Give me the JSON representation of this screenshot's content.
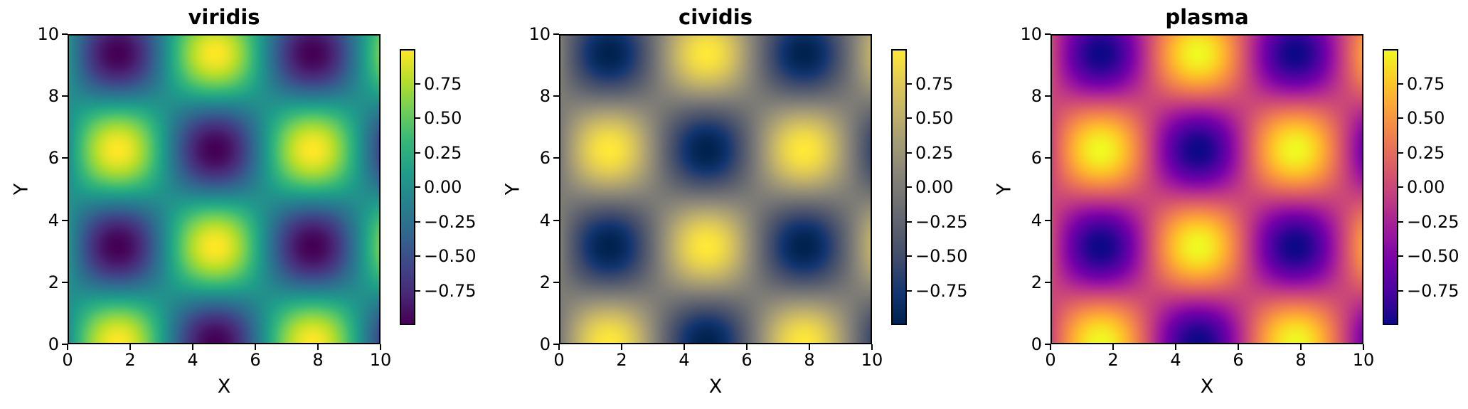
{
  "figure": {
    "background": "#ffffff",
    "n_subplots": 3,
    "text_color": "#000000"
  },
  "chart_data": [
    {
      "type": "heatmap",
      "title": "viridis",
      "xlabel": "X",
      "ylabel": "Y",
      "x_range": [
        0,
        10
      ],
      "y_range": [
        0,
        10
      ],
      "x_ticks": [
        0,
        2,
        4,
        6,
        8,
        10
      ],
      "y_ticks": [
        0,
        2,
        4,
        6,
        8,
        10
      ],
      "z_function": "z = sin(x) * cos(y)",
      "z_range": [
        -1,
        1
      ],
      "grid": false,
      "colorbar": {
        "position": "right",
        "vmin": -1,
        "vmax": 1,
        "ticks": [
          0.75,
          0.5,
          0.25,
          0.0,
          -0.25,
          -0.5,
          -0.75
        ],
        "tick_labels": [
          "0.75",
          "0.50",
          "0.25",
          "0.00",
          "−0.25",
          "−0.50",
          "−0.75"
        ]
      },
      "colormap": {
        "name": "viridis",
        "stops": [
          "#440154",
          "#482878",
          "#3e4989",
          "#31688e",
          "#26828e",
          "#1f9e89",
          "#35b779",
          "#6ece58",
          "#b5de2b",
          "#fde725"
        ]
      }
    },
    {
      "type": "heatmap",
      "title": "cividis",
      "xlabel": "X",
      "ylabel": "Y",
      "x_range": [
        0,
        10
      ],
      "y_range": [
        0,
        10
      ],
      "x_ticks": [
        0,
        2,
        4,
        6,
        8,
        10
      ],
      "y_ticks": [
        0,
        2,
        4,
        6,
        8,
        10
      ],
      "z_function": "z = sin(x) * cos(y)",
      "z_range": [
        -1,
        1
      ],
      "grid": false,
      "colorbar": {
        "position": "right",
        "vmin": -1,
        "vmax": 1,
        "ticks": [
          0.75,
          0.5,
          0.25,
          0.0,
          -0.25,
          -0.5,
          -0.75
        ],
        "tick_labels": [
          "0.75",
          "0.50",
          "0.25",
          "0.00",
          "−0.25",
          "−0.50",
          "−0.75"
        ]
      },
      "colormap": {
        "name": "cividis",
        "stops": [
          "#00224e",
          "#123570",
          "#3b496c",
          "#575d6d",
          "#707173",
          "#8a8678",
          "#a59c74",
          "#c3b369",
          "#e1cc55",
          "#fee838"
        ]
      }
    },
    {
      "type": "heatmap",
      "title": "plasma",
      "xlabel": "X",
      "ylabel": "Y",
      "x_range": [
        0,
        10
      ],
      "y_range": [
        0,
        10
      ],
      "x_ticks": [
        0,
        2,
        4,
        6,
        8,
        10
      ],
      "y_ticks": [
        0,
        2,
        4,
        6,
        8,
        10
      ],
      "z_function": "z = sin(x) * cos(y)",
      "z_range": [
        -1,
        1
      ],
      "grid": false,
      "colorbar": {
        "position": "right",
        "vmin": -1,
        "vmax": 1,
        "ticks": [
          0.75,
          0.5,
          0.25,
          0.0,
          -0.25,
          -0.5,
          -0.75
        ],
        "tick_labels": [
          "0.75",
          "0.50",
          "0.25",
          "0.00",
          "−0.25",
          "−0.50",
          "−0.75"
        ]
      },
      "colormap": {
        "name": "plasma",
        "stops": [
          "#0d0887",
          "#47039f",
          "#7301a8",
          "#9c179e",
          "#bd3786",
          "#d8576b",
          "#ed7953",
          "#fa9e3b",
          "#fdc926",
          "#f0f921"
        ]
      }
    }
  ]
}
